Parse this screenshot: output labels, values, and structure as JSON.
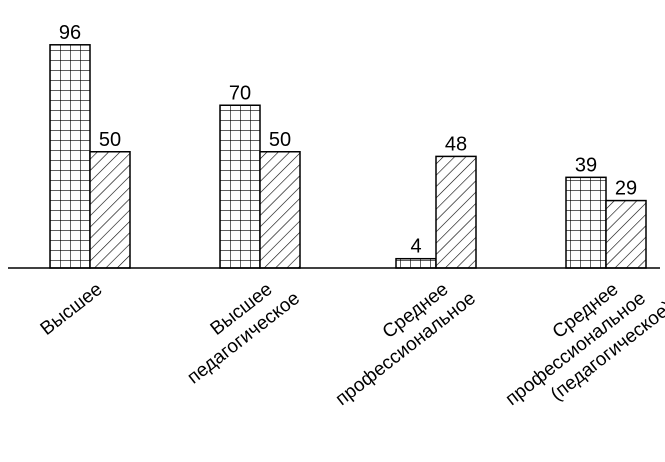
{
  "chart_data": {
    "type": "bar",
    "categories": [
      [
        "Высшее"
      ],
      [
        "Высшее",
        "педагогическое"
      ],
      [
        "Среднее",
        "профессиональное"
      ],
      [
        "Среднее",
        "профессиональное",
        "(педагогическое)"
      ]
    ],
    "series": [
      {
        "pattern": "grid",
        "values": [
          96,
          70,
          4,
          39
        ]
      },
      {
        "pattern": "diagonal-hatch",
        "values": [
          50,
          50,
          48,
          29
        ]
      }
    ],
    "ylim": [
      0,
      100
    ],
    "grid": false,
    "colors": {
      "stroke": "#000000",
      "fill": "#ffffff"
    }
  }
}
